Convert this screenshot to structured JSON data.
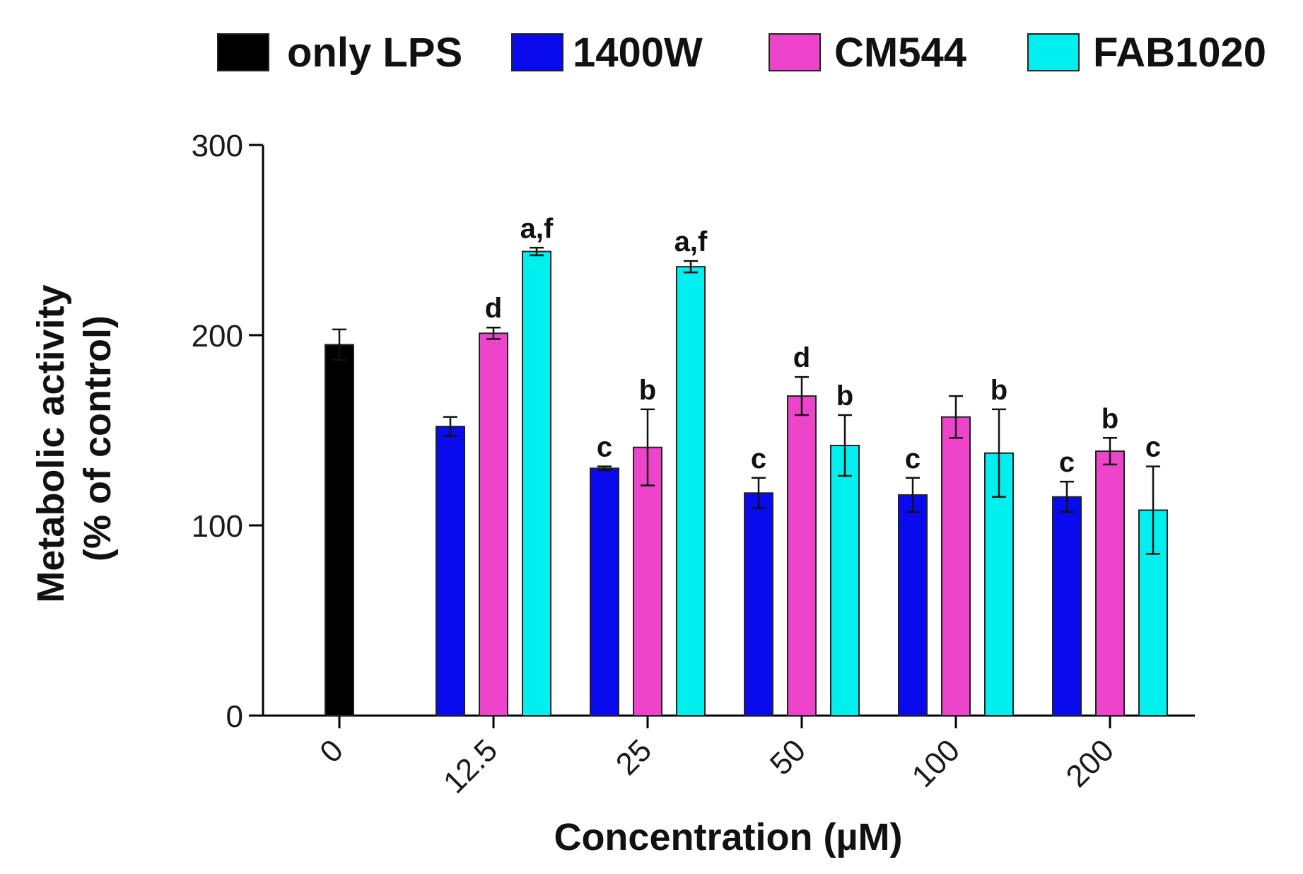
{
  "chart_data": {
    "type": "bar",
    "title": "",
    "xlabel": "Concentration (µM)",
    "ylabel_line1": "Metabolic activity",
    "ylabel_line2": "(% of control)",
    "ylim": [
      0,
      300
    ],
    "yticks": [
      "0",
      "100",
      "200",
      "300"
    ],
    "categories": [
      "0",
      "12.5",
      "25",
      "50",
      "100",
      "200"
    ],
    "legend_position": "top",
    "series": [
      {
        "name": "only LPS",
        "color": "#000000",
        "values": [
          195,
          null,
          null,
          null,
          null,
          null
        ],
        "errors": [
          8,
          null,
          null,
          null,
          null,
          null
        ],
        "annotations": [
          "",
          "",
          "",
          "",
          "",
          ""
        ]
      },
      {
        "name": "1400W",
        "color": "#0a0aee",
        "values": [
          null,
          152,
          130,
          117,
          116,
          115
        ],
        "errors": [
          null,
          5,
          1,
          8,
          9,
          8
        ],
        "annotations": [
          "",
          "",
          "c",
          "c",
          "c",
          "c"
        ]
      },
      {
        "name": "CM544",
        "color": "#ee44cc",
        "values": [
          null,
          201,
          141,
          168,
          157,
          139
        ],
        "errors": [
          null,
          3,
          20,
          10,
          11,
          7
        ],
        "annotations": [
          "",
          "d",
          "b",
          "d",
          "",
          "b"
        ]
      },
      {
        "name": "FAB1020",
        "color": "#00f0f0",
        "values": [
          null,
          244,
          236,
          142,
          138,
          108
        ],
        "errors": [
          null,
          2,
          3,
          16,
          23,
          23
        ],
        "annotations": [
          "",
          "a,f",
          "a,f",
          "b",
          "b",
          "c"
        ]
      }
    ]
  }
}
